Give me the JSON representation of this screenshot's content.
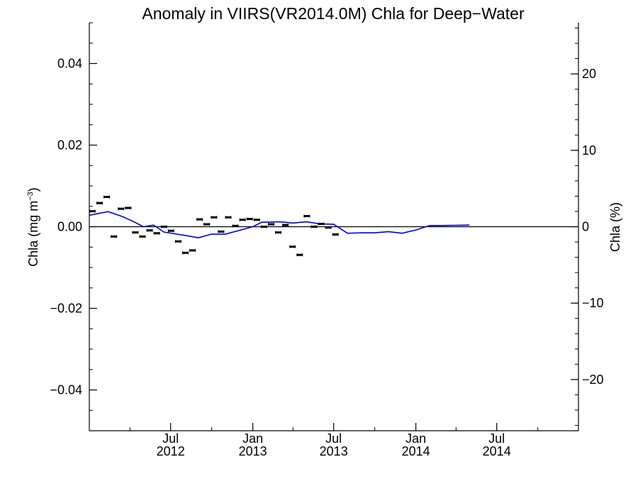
{
  "chart_data": {
    "type": "line",
    "title": "Anomaly in VIIRS(VR2014.0M) Chla for Deep−Water",
    "ylabel_left": "Chla (mg m",
    "ylabel_left_sup": "−3",
    "ylabel_left_close": ")",
    "ylabel_right": "Chla (%)",
    "xlim": [
      "2012-01-01",
      "2014-12-31"
    ],
    "ylim_left": [
      -0.05,
      0.05
    ],
    "ylim_right": [
      -26.7,
      26.7
    ],
    "zero_line": true,
    "yticks_left": [
      {
        "value": 0.04,
        "label": "0.04"
      },
      {
        "value": 0.02,
        "label": "0.02"
      },
      {
        "value": 0.0,
        "label": "0.00"
      },
      {
        "value": -0.02,
        "label": "−0.02"
      },
      {
        "value": -0.04,
        "label": "−0.04"
      }
    ],
    "yticks_right": [
      {
        "value": 20,
        "label": "20"
      },
      {
        "value": 10,
        "label": "10"
      },
      {
        "value": 0,
        "label": "0"
      },
      {
        "value": -10,
        "label": "−10"
      },
      {
        "value": -20,
        "label": "−20"
      }
    ],
    "xticks": [
      {
        "date": "2012-07-01",
        "month": "Jul",
        "year": "2012"
      },
      {
        "date": "2013-01-01",
        "month": "Jan",
        "year": "2013"
      },
      {
        "date": "2013-07-01",
        "month": "Jul",
        "year": "2013"
      },
      {
        "date": "2014-01-01",
        "month": "Jan",
        "year": "2014"
      },
      {
        "date": "2014-07-01",
        "month": "Jul",
        "year": "2014"
      }
    ],
    "series": [
      {
        "kind": "points_with_errorbars",
        "color": "#000000",
        "points": [
          {
            "x": "2012-01-08",
            "y": 0.0038
          },
          {
            "x": "2012-01-24",
            "y": 0.0058
          },
          {
            "x": "2012-02-09",
            "y": 0.0073
          },
          {
            "x": "2012-02-25",
            "y": -0.0024
          },
          {
            "x": "2012-03-12",
            "y": 0.0044
          },
          {
            "x": "2012-03-28",
            "y": 0.0046
          },
          {
            "x": "2012-04-13",
            "y": -0.0014
          },
          {
            "x": "2012-04-29",
            "y": -0.0024
          },
          {
            "x": "2012-05-15",
            "y": -0.0009
          },
          {
            "x": "2012-05-31",
            "y": -0.0016
          },
          {
            "x": "2012-06-16",
            "y": 0.0
          },
          {
            "x": "2012-07-02",
            "y": -0.001
          },
          {
            "x": "2012-07-18",
            "y": -0.0036
          },
          {
            "x": "2012-08-03",
            "y": -0.0064
          },
          {
            "x": "2012-08-19",
            "y": -0.0058
          },
          {
            "x": "2012-09-04",
            "y": 0.0018
          },
          {
            "x": "2012-09-20",
            "y": 0.0006
          },
          {
            "x": "2012-10-06",
            "y": 0.0023
          },
          {
            "x": "2012-10-22",
            "y": -0.0012
          },
          {
            "x": "2012-11-07",
            "y": 0.0023
          },
          {
            "x": "2012-11-23",
            "y": 0.0002
          },
          {
            "x": "2012-12-09",
            "y": 0.0017
          },
          {
            "x": "2012-12-25",
            "y": 0.0019
          },
          {
            "x": "2013-01-10",
            "y": 0.0017
          },
          {
            "x": "2013-01-26",
            "y": 0.0
          },
          {
            "x": "2013-02-11",
            "y": 0.0006
          },
          {
            "x": "2013-02-27",
            "y": -0.0014
          },
          {
            "x": "2013-03-15",
            "y": 0.0004
          },
          {
            "x": "2013-03-31",
            "y": -0.0049
          },
          {
            "x": "2013-04-16",
            "y": -0.0069
          },
          {
            "x": "2013-05-02",
            "y": 0.0026
          },
          {
            "x": "2013-05-18",
            "y": 0.0
          },
          {
            "x": "2013-06-03",
            "y": 0.0007
          },
          {
            "x": "2013-06-19",
            "y": -0.0002
          },
          {
            "x": "2013-07-05",
            "y": -0.0019
          }
        ]
      },
      {
        "kind": "line",
        "color": "#0000dd",
        "points": [
          {
            "x": "2012-01-01",
            "y": 0.0028
          },
          {
            "x": "2012-02-12",
            "y": 0.0037
          },
          {
            "x": "2012-03-15",
            "y": 0.0025
          },
          {
            "x": "2012-04-12",
            "y": 0.0011
          },
          {
            "x": "2012-05-01",
            "y": 0.0
          },
          {
            "x": "2012-05-24",
            "y": 0.0004
          },
          {
            "x": "2012-06-16",
            "y": -0.0013
          },
          {
            "x": "2012-08-01",
            "y": -0.0021
          },
          {
            "x": "2012-09-01",
            "y": -0.0027
          },
          {
            "x": "2012-10-01",
            "y": -0.0018
          },
          {
            "x": "2012-11-01",
            "y": -0.0018
          },
          {
            "x": "2013-01-01",
            "y": 0.0
          },
          {
            "x": "2013-01-21",
            "y": 0.0011
          },
          {
            "x": "2013-03-01",
            "y": 0.0012
          },
          {
            "x": "2013-04-01",
            "y": 0.0009
          },
          {
            "x": "2013-05-01",
            "y": 0.0012
          },
          {
            "x": "2013-06-01",
            "y": 0.0007
          },
          {
            "x": "2013-07-01",
            "y": 0.0006
          },
          {
            "x": "2013-08-01",
            "y": -0.0016
          },
          {
            "x": "2013-09-01",
            "y": -0.0015
          },
          {
            "x": "2013-10-01",
            "y": -0.0015
          },
          {
            "x": "2013-11-01",
            "y": -0.0012
          },
          {
            "x": "2013-12-01",
            "y": -0.0016
          },
          {
            "x": "2014-01-01",
            "y": -0.0008
          },
          {
            "x": "2014-02-01",
            "y": 0.0003
          },
          {
            "x": "2014-03-01",
            "y": 0.0003
          },
          {
            "x": "2014-05-01",
            "y": 0.0004
          }
        ]
      }
    ]
  }
}
